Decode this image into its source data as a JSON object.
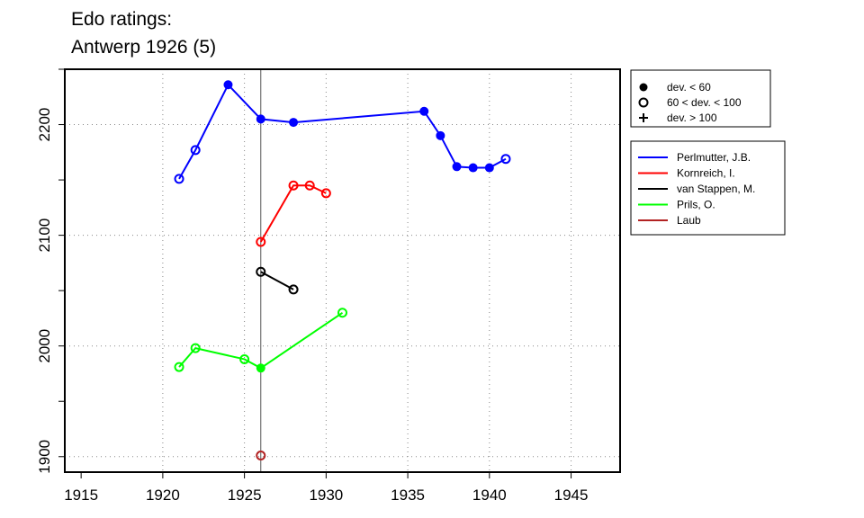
{
  "title": "Edo ratings:",
  "subtitle": "Antwerp 1926 (5)",
  "chart_data": {
    "type": "line",
    "xlim": [
      1914,
      1948
    ],
    "ylim": [
      1886,
      2250
    ],
    "x_ticks": [
      1915,
      1920,
      1925,
      1930,
      1935,
      1940,
      1945
    ],
    "y_ticks": [
      1900,
      2000,
      2100,
      2200
    ],
    "x_grid": [
      1920,
      1925,
      1930,
      1935,
      1940,
      1945
    ],
    "y_grid": [
      1900,
      2000,
      2100,
      2200
    ],
    "grid": "dotted",
    "event_marker_x": 1926,
    "dev_legend": [
      {
        "symbol": "filled-circle",
        "label": "dev. < 60"
      },
      {
        "symbol": "open-circle",
        "label": "60 < dev. < 100"
      },
      {
        "symbol": "plus",
        "label": "dev. > 100"
      }
    ],
    "series": [
      {
        "name": "Perlmutter, J.B.",
        "color": "#0000ff",
        "points": [
          {
            "x": 1921,
            "y": 2151,
            "marker": "open"
          },
          {
            "x": 1922,
            "y": 2177,
            "marker": "open"
          },
          {
            "x": 1924,
            "y": 2236,
            "marker": "filled"
          },
          {
            "x": 1926,
            "y": 2205,
            "marker": "filled"
          },
          {
            "x": 1928,
            "y": 2202,
            "marker": "filled"
          },
          {
            "x": 1936,
            "y": 2212,
            "marker": "filled"
          },
          {
            "x": 1937,
            "y": 2190,
            "marker": "filled"
          },
          {
            "x": 1938,
            "y": 2162,
            "marker": "filled"
          },
          {
            "x": 1939,
            "y": 2161,
            "marker": "filled"
          },
          {
            "x": 1940,
            "y": 2161,
            "marker": "filled"
          },
          {
            "x": 1941,
            "y": 2169,
            "marker": "open"
          }
        ]
      },
      {
        "name": "Kornreich, I.",
        "color": "#ff0000",
        "points": [
          {
            "x": 1926,
            "y": 2094,
            "marker": "open"
          },
          {
            "x": 1928,
            "y": 2145,
            "marker": "open"
          },
          {
            "x": 1929,
            "y": 2145,
            "marker": "open"
          },
          {
            "x": 1930,
            "y": 2138,
            "marker": "open"
          }
        ]
      },
      {
        "name": "van Stappen, M.",
        "color": "#000000",
        "points": [
          {
            "x": 1926,
            "y": 2067,
            "marker": "open"
          },
          {
            "x": 1928,
            "y": 2051,
            "marker": "open"
          }
        ]
      },
      {
        "name": "Prils, O.",
        "color": "#00ff00",
        "points": [
          {
            "x": 1921,
            "y": 1981,
            "marker": "open"
          },
          {
            "x": 1922,
            "y": 1998,
            "marker": "open"
          },
          {
            "x": 1925,
            "y": 1988,
            "marker": "open"
          },
          {
            "x": 1926,
            "y": 1980,
            "marker": "filled"
          },
          {
            "x": 1931,
            "y": 2030,
            "marker": "open"
          }
        ]
      },
      {
        "name": "Laub",
        "color": "#b22222",
        "points": [
          {
            "x": 1926,
            "y": 1901,
            "marker": "open"
          }
        ]
      }
    ]
  }
}
